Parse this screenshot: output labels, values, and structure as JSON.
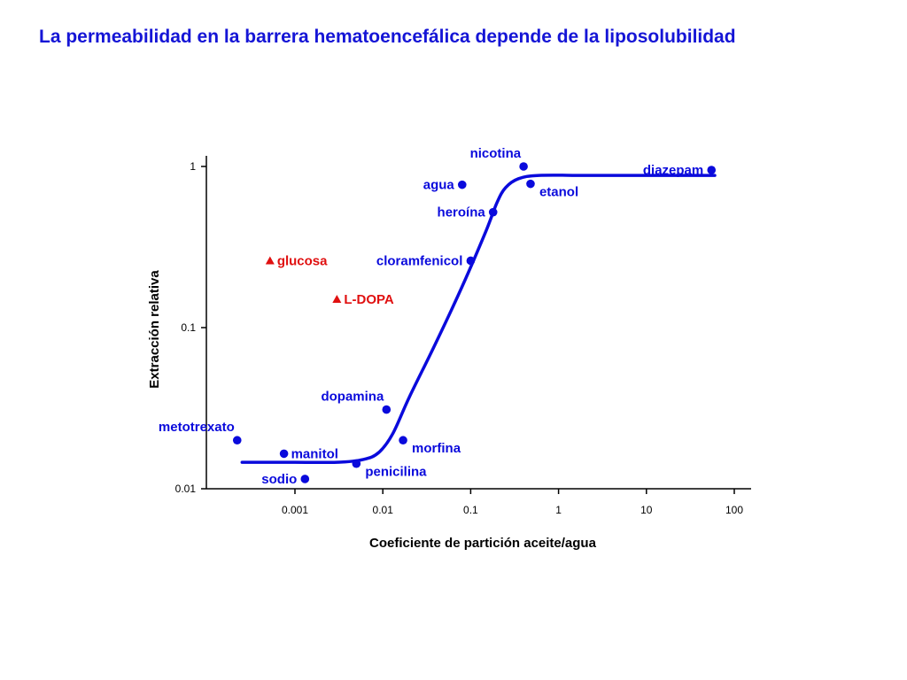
{
  "title": "La permeabilidad en la barrera hematoencefálica depende de la liposolubilidad",
  "colors": {
    "title": "#1515d6",
    "series": "#0a0adc",
    "highlight": "#e01010",
    "axis": "#000000"
  },
  "chart_data": {
    "type": "scatter",
    "xlabel": "Coeficiente de partición aceite/agua",
    "ylabel": "Extracción relativa",
    "x_scale": "log",
    "y_scale": "log",
    "xlim": [
      0.0001,
      200
    ],
    "ylim": [
      0.01,
      1.4
    ],
    "x_ticks": [
      {
        "value": 0.001,
        "label": "0.001"
      },
      {
        "value": 0.01,
        "label": "0.01"
      },
      {
        "value": 0.1,
        "label": "0.1"
      },
      {
        "value": 1,
        "label": "1"
      },
      {
        "value": 10,
        "label": "10"
      },
      {
        "value": 100,
        "label": "100"
      }
    ],
    "y_ticks": [
      {
        "value": 0.01,
        "label": "0.01"
      },
      {
        "value": 0.1,
        "label": "0.1"
      },
      {
        "value": 1,
        "label": "1"
      }
    ],
    "grid": false,
    "series": [
      {
        "marker": "circle",
        "color": "#0a0adc",
        "points": [
          {
            "label": "nicotina",
            "x": 0.4,
            "y": 1.0,
            "label_pos": "above-left"
          },
          {
            "label": "diazepam",
            "x": 55,
            "y": 0.95,
            "label_pos": "left"
          },
          {
            "label": "agua",
            "x": 0.08,
            "y": 0.77,
            "label_pos": "left"
          },
          {
            "label": "etanol",
            "x": 0.48,
            "y": 0.78,
            "label_pos": "below-right"
          },
          {
            "label": "heroína",
            "x": 0.18,
            "y": 0.52,
            "label_pos": "left"
          },
          {
            "label": "cloramfenicol",
            "x": 0.1,
            "y": 0.26,
            "label_pos": "left"
          },
          {
            "label": "dopamina",
            "x": 0.011,
            "y": 0.031,
            "label_pos": "above-left"
          },
          {
            "label": "metotrexato",
            "x": 0.00022,
            "y": 0.02,
            "label_pos": "above-left"
          },
          {
            "label": "morfina",
            "x": 0.017,
            "y": 0.02,
            "label_pos": "below-right"
          },
          {
            "label": "manitol",
            "x": 0.00075,
            "y": 0.0165,
            "label_pos": "right"
          },
          {
            "label": "penicilina",
            "x": 0.005,
            "y": 0.0143,
            "label_pos": "below-right"
          },
          {
            "label": "sodio",
            "x": 0.0013,
            "y": 0.0115,
            "label_pos": "left"
          }
        ]
      },
      {
        "marker": "triangle",
        "color": "#e01010",
        "points": [
          {
            "label": "glucosa",
            "x": 0.00052,
            "y": 0.26,
            "label_pos": "right"
          },
          {
            "label": "L-DOPA",
            "x": 0.003,
            "y": 0.15,
            "label_pos": "right"
          }
        ]
      }
    ],
    "fit_curve": {
      "color": "#0a0adc",
      "points": [
        [
          0.00025,
          0.0146
        ],
        [
          0.001,
          0.0146
        ],
        [
          0.003,
          0.0146
        ],
        [
          0.006,
          0.0152
        ],
        [
          0.009,
          0.0168
        ],
        [
          0.013,
          0.022
        ],
        [
          0.02,
          0.037
        ],
        [
          0.04,
          0.08
        ],
        [
          0.08,
          0.18
        ],
        [
          0.15,
          0.4
        ],
        [
          0.2,
          0.6
        ],
        [
          0.25,
          0.74
        ],
        [
          0.35,
          0.84
        ],
        [
          0.6,
          0.88
        ],
        [
          2,
          0.88
        ],
        [
          10,
          0.88
        ],
        [
          60,
          0.88
        ]
      ]
    }
  }
}
